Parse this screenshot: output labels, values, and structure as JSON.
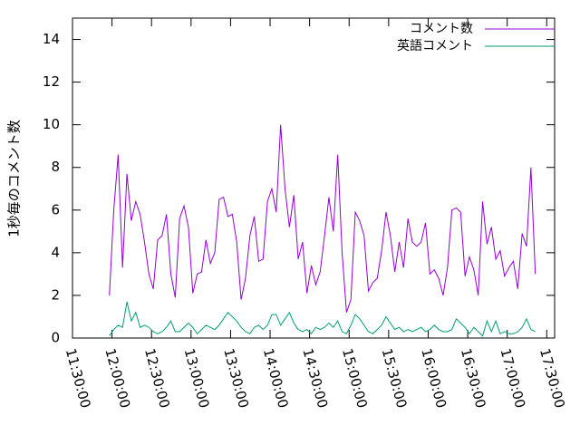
{
  "chart_data": {
    "type": "line",
    "y_label": "1秒毎のコメント数",
    "x": [
      "11:58:00",
      "12:01:20",
      "12:04:40",
      "12:08:00",
      "12:11:20",
      "12:14:40",
      "12:18:00",
      "12:21:20",
      "12:24:40",
      "12:28:00",
      "12:31:20",
      "12:34:40",
      "12:38:00",
      "12:41:20",
      "12:44:40",
      "12:48:00",
      "12:51:20",
      "12:54:40",
      "12:58:00",
      "13:01:20",
      "13:04:40",
      "13:08:00",
      "13:11:20",
      "13:14:40",
      "13:18:00",
      "13:21:20",
      "13:24:40",
      "13:28:00",
      "13:31:20",
      "13:34:40",
      "13:38:00",
      "13:41:20",
      "13:44:40",
      "13:48:00",
      "13:51:20",
      "13:54:40",
      "13:58:00",
      "14:01:20",
      "14:04:40",
      "14:08:00",
      "14:11:20",
      "14:14:40",
      "14:18:00",
      "14:21:20",
      "14:24:40",
      "14:28:00",
      "14:31:20",
      "14:34:40",
      "14:38:00",
      "14:41:20",
      "14:44:40",
      "14:48:00",
      "14:51:20",
      "14:54:40",
      "14:58:00",
      "15:01:20",
      "15:04:40",
      "15:08:00",
      "15:11:20",
      "15:14:40",
      "15:18:00",
      "15:21:20",
      "15:24:40",
      "15:28:00",
      "15:31:20",
      "15:34:40",
      "15:38:00",
      "15:41:20",
      "15:44:40",
      "15:48:00",
      "15:51:20",
      "15:54:40",
      "15:58:00",
      "16:01:20",
      "16:04:40",
      "16:08:00",
      "16:11:20",
      "16:14:40",
      "16:18:00",
      "16:21:20",
      "16:24:40",
      "16:28:00",
      "16:31:20",
      "16:34:40",
      "16:38:00",
      "16:41:20",
      "16:44:40",
      "16:48:00",
      "16:51:20",
      "16:54:40",
      "16:58:00",
      "17:01:20",
      "17:04:40",
      "17:08:00",
      "17:11:20",
      "17:14:40",
      "17:18:00",
      "17:21:20"
    ],
    "series": [
      {
        "name": "コメント数",
        "color": "#9400d3",
        "values": [
          2.0,
          6,
          8.6,
          3.3,
          7.7,
          5.5,
          6.4,
          5.8,
          4.5,
          3,
          2.3,
          4.6,
          4.8,
          5.8,
          3,
          1.9,
          5.6,
          6.2,
          5.2,
          2.1,
          3,
          3.1,
          4.6,
          3.5,
          4,
          6.5,
          6.6,
          5.7,
          5.8,
          4.5,
          1.8,
          2.8,
          4.8,
          5.7,
          3.6,
          3.7,
          6.4,
          7,
          5.9,
          10,
          7,
          5.2,
          6.7,
          3.7,
          4.5,
          2.1,
          3.4,
          2.5,
          3.1,
          4.8,
          6.6,
          5,
          8.6,
          4,
          1.2,
          1.8,
          5.9,
          5.5,
          4.8,
          2.2,
          2.6,
          2.8,
          4.1,
          5.9,
          4.8,
          3.1,
          4.5,
          3.3,
          5.6,
          4.5,
          4.3,
          4.5,
          5.4,
          3,
          3.2,
          2.8,
          2,
          3.3,
          6,
          6.1,
          5.9,
          2.9,
          3.8,
          3.2,
          2,
          6.4,
          4.4,
          5.2,
          3.7,
          4.1,
          2.9,
          3.3,
          3.6,
          2.3,
          4.9,
          4.3,
          8,
          3
        ]
      },
      {
        "name": "英語コメント",
        "color": "#009e73",
        "values": [
          0.1,
          0.4,
          0.6,
          0.5,
          1.7,
          0.8,
          1.2,
          0.5,
          0.6,
          0.5,
          0.3,
          0.2,
          0.3,
          0.5,
          0.8,
          0.3,
          0.3,
          0.5,
          0.7,
          0.5,
          0.2,
          0.4,
          0.6,
          0.5,
          0.4,
          0.6,
          0.9,
          1.2,
          1.0,
          0.8,
          0.5,
          0.3,
          0.2,
          0.5,
          0.6,
          0.4,
          0.6,
          1.1,
          1.1,
          0.6,
          0.9,
          1.2,
          0.7,
          0.4,
          0.3,
          0.4,
          0.2,
          0.5,
          0.4,
          0.5,
          0.7,
          0.5,
          0.8,
          0.3,
          0.2,
          0.6,
          1.1,
          0.9,
          0.6,
          0.3,
          0.2,
          0.4,
          0.6,
          1.0,
          0.7,
          0.4,
          0.5,
          0.3,
          0.4,
          0.3,
          0.4,
          0.5,
          0.3,
          0.4,
          0.6,
          0.4,
          0.3,
          0.3,
          0.4,
          0.9,
          0.7,
          0.5,
          0.2,
          0.5,
          0.3,
          0.1,
          0.8,
          0.3,
          0.8,
          0.2,
          0.3,
          0.2,
          0.2,
          0.3,
          0.5,
          0.9,
          0.4,
          0.3
        ]
      }
    ],
    "xlim": [
      "11:30:00",
      "17:36:00"
    ],
    "xticks": [
      "11:30:00",
      "12:00:00",
      "12:30:00",
      "13:00:00",
      "13:30:00",
      "14:00:00",
      "14:30:00",
      "15:00:00",
      "15:30:00",
      "16:00:00",
      "16:30:00",
      "17:00:00",
      "17:30:00"
    ],
    "ylim": [
      0,
      15
    ],
    "yticks": [
      0,
      2,
      4,
      6,
      8,
      10,
      12,
      14
    ],
    "grid": false,
    "legend": "top-right"
  }
}
